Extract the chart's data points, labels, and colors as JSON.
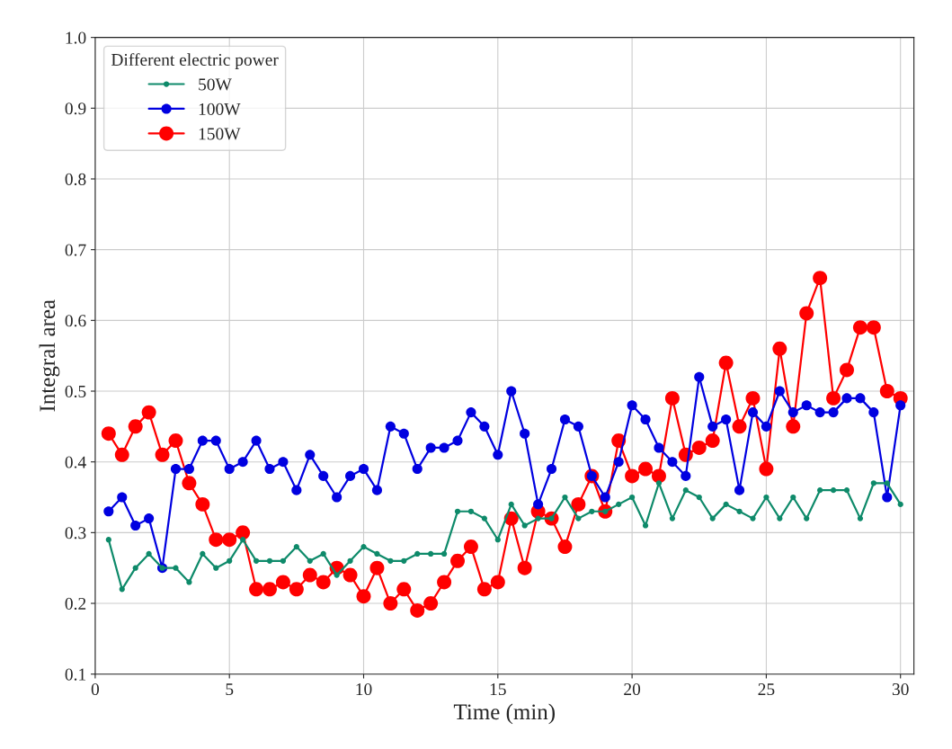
{
  "chart_data": {
    "type": "line",
    "xlabel": "Time (min)",
    "ylabel": "Integral area",
    "legend_title": "Different electric power",
    "x": [
      0.5,
      1,
      1.5,
      2,
      2.5,
      3,
      3.5,
      4,
      4.5,
      5,
      5.5,
      6,
      6.5,
      7,
      7.5,
      8,
      8.5,
      9,
      9.5,
      10,
      10.5,
      11,
      11.5,
      12,
      12.5,
      13,
      13.5,
      14,
      14.5,
      15,
      15.5,
      16,
      16.5,
      17,
      17.5,
      18,
      18.5,
      19,
      19.5,
      20,
      20.5,
      21,
      21.5,
      22,
      22.5,
      23,
      23.5,
      24,
      24.5,
      25,
      25.5,
      26,
      26.5,
      27,
      27.5,
      28,
      28.5,
      29,
      29.5,
      30
    ],
    "series": [
      {
        "name": "50W",
        "color": "#0e8a6a",
        "values": [
          0.29,
          0.22,
          0.25,
          0.27,
          0.25,
          0.25,
          0.23,
          0.27,
          0.25,
          0.26,
          0.29,
          0.26,
          0.26,
          0.26,
          0.28,
          0.26,
          0.27,
          0.24,
          0.26,
          0.28,
          0.27,
          0.26,
          0.26,
          0.27,
          0.27,
          0.27,
          0.33,
          0.33,
          0.32,
          0.29,
          0.34,
          0.31,
          0.32,
          0.32,
          0.35,
          0.32,
          0.33,
          0.33,
          0.34,
          0.35,
          0.31,
          0.37,
          0.32,
          0.36,
          0.35,
          0.32,
          0.34,
          0.33,
          0.32,
          0.35,
          0.32,
          0.35,
          0.32,
          0.36,
          0.36,
          0.36,
          0.32,
          0.37,
          0.37,
          0.34
        ]
      },
      {
        "name": "100W",
        "color": "#0000e0",
        "values": [
          0.33,
          0.35,
          0.31,
          0.32,
          0.25,
          0.39,
          0.39,
          0.43,
          0.43,
          0.39,
          0.4,
          0.43,
          0.39,
          0.4,
          0.36,
          0.41,
          0.38,
          0.35,
          0.38,
          0.39,
          0.36,
          0.45,
          0.44,
          0.39,
          0.42,
          0.42,
          0.43,
          0.47,
          0.45,
          0.41,
          0.5,
          0.44,
          0.34,
          0.39,
          0.46,
          0.45,
          0.38,
          0.35,
          0.4,
          0.48,
          0.46,
          0.42,
          0.4,
          0.38,
          0.52,
          0.45,
          0.46,
          0.36,
          0.47,
          0.45,
          0.5,
          0.47,
          0.48,
          0.47,
          0.47,
          0.49,
          0.49,
          0.47,
          0.35,
          0.48
        ]
      },
      {
        "name": "150W",
        "color": "#ff0000",
        "values": [
          0.44,
          0.41,
          0.45,
          0.47,
          0.41,
          0.43,
          0.37,
          0.34,
          0.29,
          0.29,
          0.3,
          0.22,
          0.22,
          0.23,
          0.22,
          0.24,
          0.23,
          0.25,
          0.24,
          0.21,
          0.25,
          0.2,
          0.22,
          0.19,
          0.2,
          0.23,
          0.26,
          0.28,
          0.22,
          0.23,
          0.32,
          0.25,
          0.33,
          0.32,
          0.28,
          0.34,
          0.38,
          0.33,
          0.43,
          0.38,
          0.39,
          0.38,
          0.49,
          0.41,
          0.42,
          0.43,
          0.54,
          0.45,
          0.49,
          0.39,
          0.56,
          0.45,
          0.61,
          0.66,
          0.49,
          0.53,
          0.59,
          0.59,
          0.5,
          0.49
        ]
      }
    ],
    "xlim": [
      0,
      30.5
    ],
    "xticks": [
      0,
      5,
      10,
      15,
      20,
      25,
      30
    ],
    "ylim": [
      0.1,
      1.0
    ],
    "yticks": [
      0.1,
      0.2,
      0.3,
      0.4,
      0.5,
      0.6,
      0.7,
      0.8,
      0.9,
      {
        "value": 1.0,
        "label": "1.0"
      }
    ],
    "grid": true,
    "legend": "top left",
    "marker": "circle",
    "line_style": "solid"
  }
}
